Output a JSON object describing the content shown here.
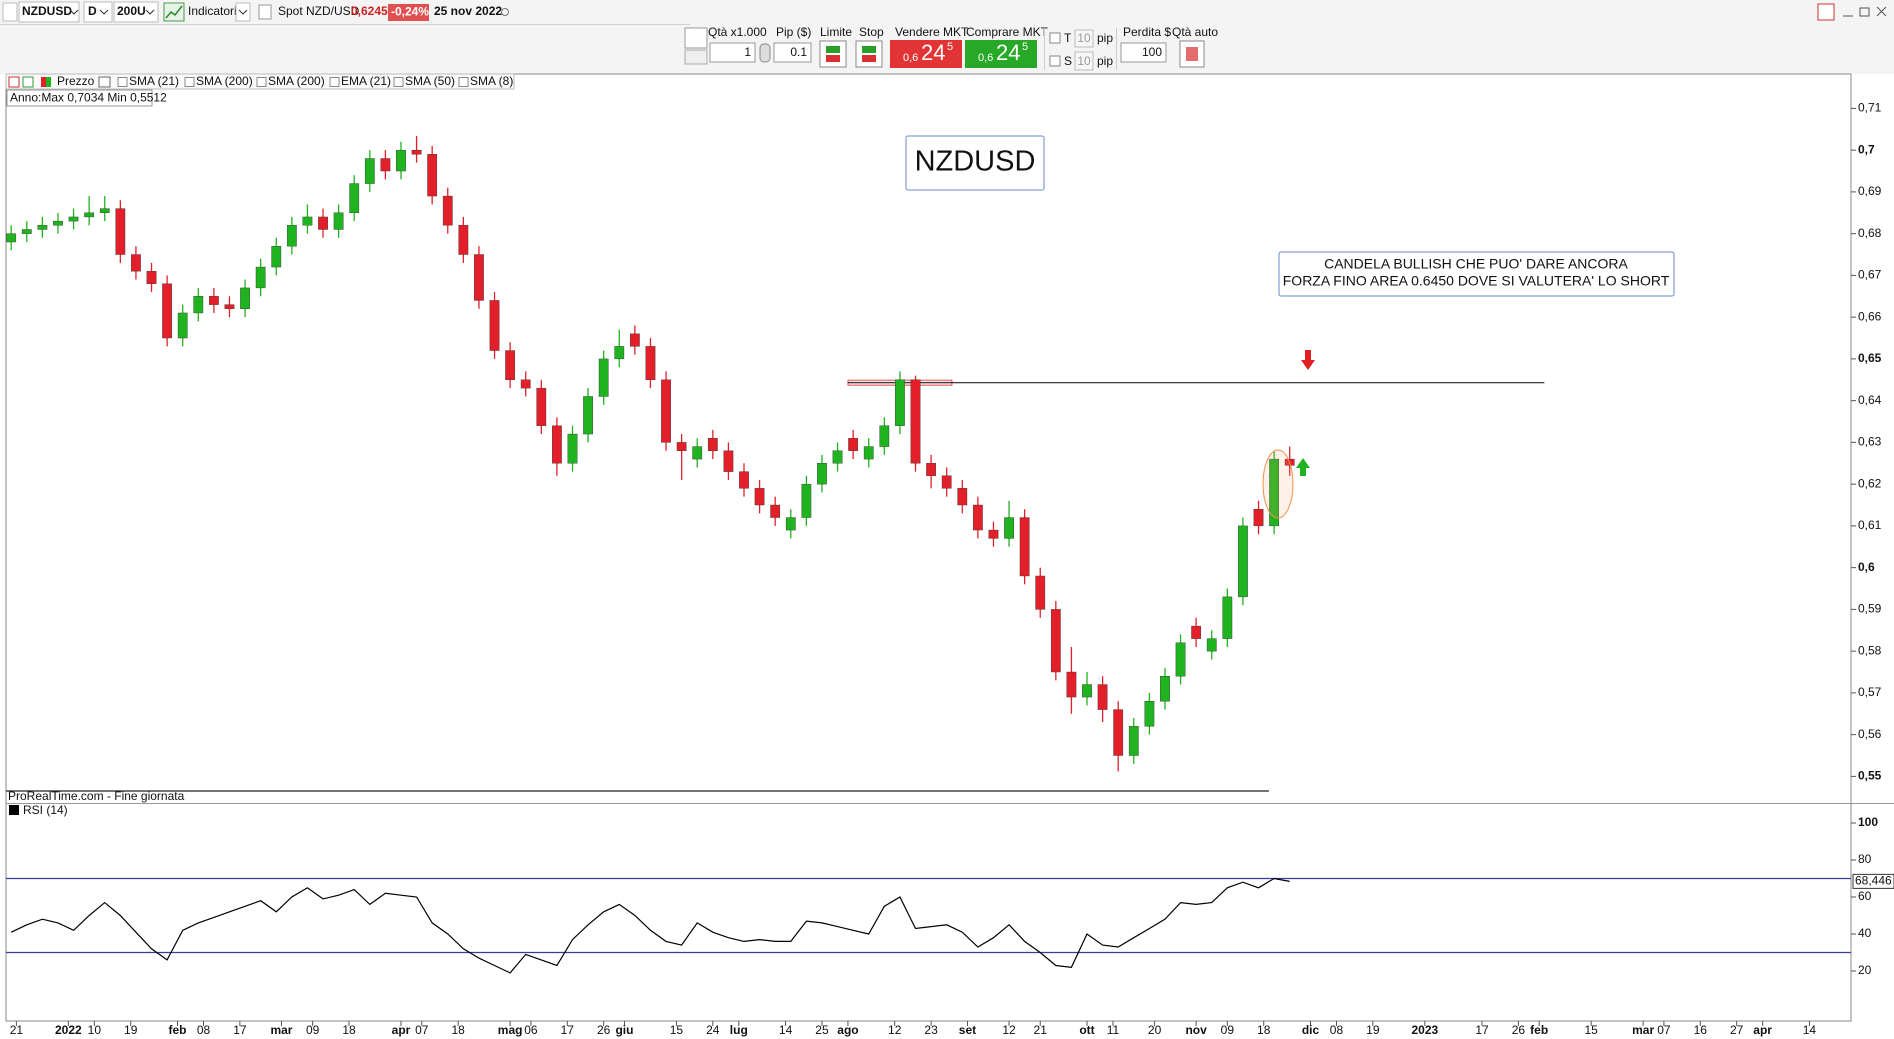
{
  "toolbar": {
    "symbol": "NZDUSD",
    "timeframe": "D",
    "bars": "200U",
    "indicators": "Indicatori",
    "instrument": "Spot NZD/USD",
    "price": "0,6245",
    "change": "-0,24%",
    "date": "25 nov 2022"
  },
  "order_panel": {
    "qty_label": "Qtà x1.000",
    "qty": "1",
    "pip_label": "Pip ($)",
    "pip": "0.1",
    "limit": "Limite",
    "stop": "Stop",
    "sell": {
      "label": "Vendere MKT",
      "price": [
        "0,6",
        "24",
        "5"
      ]
    },
    "buy": {
      "label": "Comprare MKT",
      "price": [
        "0,6",
        "24",
        "5"
      ]
    },
    "t": "T",
    "s": "S",
    "t_pips": "10",
    "s_pips": "10",
    "pip_units": [
      "pip",
      "pip"
    ],
    "loss_label": "Perdita $",
    "loss": "100",
    "auto": "Qtà auto"
  },
  "legend": {
    "items": [
      "Prezzo",
      "SMA (21)",
      "SMA (200)",
      "SMA (200)",
      "EMA (21)",
      "SMA (50)",
      "SMA (8)"
    ],
    "range_info": "Anno:Max 0,7034 Min 0,5512",
    "source": "ProRealTime.com - Fine giornata"
  },
  "chart_data": [
    {
      "type": "candlestick",
      "title": "NZDUSD",
      "x": [
        1,
        4,
        7,
        10,
        13,
        16,
        19,
        22,
        25,
        28,
        31,
        34,
        37,
        40,
        43,
        46,
        49,
        52,
        55,
        58,
        61,
        64,
        67,
        70,
        73,
        76,
        79,
        82,
        85,
        88,
        91,
        94,
        97,
        100,
        103,
        106,
        109,
        112,
        115,
        118,
        121,
        124,
        127,
        130,
        133,
        136,
        139,
        142,
        145,
        148,
        151,
        154,
        157,
        160,
        163,
        166,
        169,
        172,
        175,
        178,
        181,
        184,
        187,
        190,
        193,
        196,
        199,
        202,
        205,
        208,
        211,
        214,
        217,
        220,
        223,
        226,
        229,
        232,
        235,
        238,
        241,
        244,
        247
      ],
      "open": [
        0.678,
        0.68,
        0.681,
        0.682,
        0.683,
        0.684,
        0.685,
        0.686,
        0.675,
        0.671,
        0.668,
        0.655,
        0.661,
        0.665,
        0.663,
        0.662,
        0.667,
        0.672,
        0.677,
        0.682,
        0.684,
        0.681,
        0.685,
        0.692,
        0.698,
        0.695,
        0.7,
        0.699,
        0.689,
        0.682,
        0.675,
        0.664,
        0.652,
        0.645,
        0.643,
        0.634,
        0.625,
        0.632,
        0.641,
        0.65,
        0.656,
        0.653,
        0.645,
        0.63,
        0.626,
        0.631,
        0.628,
        0.623,
        0.619,
        0.615,
        0.609,
        0.612,
        0.62,
        0.625,
        0.631,
        0.626,
        0.629,
        0.634,
        0.645,
        0.625,
        0.622,
        0.619,
        0.615,
        0.609,
        0.607,
        0.612,
        0.598,
        0.59,
        0.575,
        0.569,
        0.572,
        0.566,
        0.555,
        0.562,
        0.568,
        0.574,
        0.586,
        0.58,
        0.583,
        0.593,
        0.614,
        0.61,
        0.626
      ],
      "high": [
        0.682,
        0.683,
        0.684,
        0.685,
        0.686,
        0.689,
        0.689,
        0.688,
        0.677,
        0.673,
        0.67,
        0.663,
        0.667,
        0.667,
        0.665,
        0.669,
        0.674,
        0.679,
        0.684,
        0.687,
        0.686,
        0.687,
        0.694,
        0.7,
        0.7,
        0.702,
        0.7034,
        0.701,
        0.691,
        0.684,
        0.677,
        0.666,
        0.654,
        0.647,
        0.645,
        0.636,
        0.634,
        0.643,
        0.652,
        0.657,
        0.658,
        0.655,
        0.647,
        0.632,
        0.631,
        0.633,
        0.63,
        0.625,
        0.621,
        0.617,
        0.614,
        0.622,
        0.627,
        0.63,
        0.633,
        0.631,
        0.636,
        0.647,
        0.646,
        0.627,
        0.624,
        0.621,
        0.617,
        0.611,
        0.616,
        0.614,
        0.6,
        0.592,
        0.581,
        0.575,
        0.574,
        0.568,
        0.564,
        0.57,
        0.576,
        0.584,
        0.588,
        0.585,
        0.595,
        0.612,
        0.616,
        0.628,
        0.629
      ],
      "low": [
        0.676,
        0.678,
        0.679,
        0.68,
        0.681,
        0.682,
        0.683,
        0.673,
        0.669,
        0.666,
        0.653,
        0.653,
        0.659,
        0.661,
        0.66,
        0.66,
        0.665,
        0.67,
        0.675,
        0.68,
        0.679,
        0.679,
        0.683,
        0.69,
        0.693,
        0.693,
        0.697,
        0.687,
        0.68,
        0.673,
        0.662,
        0.65,
        0.643,
        0.641,
        0.632,
        0.622,
        0.623,
        0.63,
        0.639,
        0.648,
        0.651,
        0.643,
        0.628,
        0.621,
        0.624,
        0.626,
        0.621,
        0.617,
        0.613,
        0.61,
        0.607,
        0.61,
        0.618,
        0.623,
        0.626,
        0.624,
        0.627,
        0.632,
        0.623,
        0.619,
        0.617,
        0.613,
        0.607,
        0.605,
        0.605,
        0.596,
        0.588,
        0.573,
        0.565,
        0.567,
        0.563,
        0.5512,
        0.553,
        0.56,
        0.566,
        0.572,
        0.581,
        0.578,
        0.581,
        0.591,
        0.608,
        0.608,
        0.622
      ],
      "close": [
        0.68,
        0.681,
        0.682,
        0.683,
        0.684,
        0.685,
        0.686,
        0.675,
        0.671,
        0.668,
        0.655,
        0.661,
        0.665,
        0.663,
        0.662,
        0.667,
        0.672,
        0.677,
        0.682,
        0.684,
        0.681,
        0.685,
        0.692,
        0.698,
        0.695,
        0.7,
        0.699,
        0.689,
        0.682,
        0.675,
        0.664,
        0.652,
        0.645,
        0.643,
        0.634,
        0.625,
        0.632,
        0.641,
        0.65,
        0.653,
        0.653,
        0.645,
        0.63,
        0.628,
        0.629,
        0.628,
        0.623,
        0.619,
        0.615,
        0.612,
        0.612,
        0.62,
        0.625,
        0.628,
        0.628,
        0.629,
        0.634,
        0.645,
        0.625,
        0.622,
        0.619,
        0.615,
        0.609,
        0.607,
        0.612,
        0.598,
        0.59,
        0.575,
        0.569,
        0.572,
        0.566,
        0.555,
        0.562,
        0.568,
        0.574,
        0.582,
        0.583,
        0.583,
        0.593,
        0.61,
        0.61,
        0.626,
        0.6245
      ],
      "colors": {
        "up": "#1fb41f",
        "down": "#e3202a"
      },
      "xlim": [
        0,
        355
      ],
      "ylim": [
        0.5465,
        0.718
      ],
      "yticks": [
        {
          "value": 0.71,
          "label": "0,71"
        },
        {
          "value": 0.7,
          "label": "0,7"
        },
        {
          "value": 0.69,
          "label": "0,69"
        },
        {
          "value": 0.68,
          "label": "0,68"
        },
        {
          "value": 0.67,
          "label": "0,67"
        },
        {
          "value": 0.66,
          "label": "0,66"
        },
        {
          "value": 0.65,
          "label": "0,65"
        },
        {
          "value": 0.64,
          "label": "0,64"
        },
        {
          "value": 0.63,
          "label": "0,63"
        },
        {
          "value": 0.62,
          "label": "0,62"
        },
        {
          "value": 0.61,
          "label": "0,61"
        },
        {
          "value": 0.6,
          "label": "0,6"
        },
        {
          "value": 0.59,
          "label": "0,59"
        },
        {
          "value": 0.58,
          "label": "0,58"
        },
        {
          "value": 0.57,
          "label": "0,57"
        },
        {
          "value": 0.56,
          "label": "0,56"
        },
        {
          "value": 0.55,
          "label": "0,55"
        }
      ],
      "hlines": [
        {
          "value": 0.6443,
          "from": 162,
          "to": 296
        },
        {
          "value": 0.5465,
          "from": 0,
          "to": 243
        }
      ],
      "zone": {
        "x": [
          162,
          182
        ],
        "y": [
          0.6437,
          0.6449
        ]
      },
      "annotation": [
        "CANDELA BULLISH CHE PUO' DARE ANCORA",
        "FORZA FINO AREA 0.6450 DOVE SI VALUTERA' LO SHORT"
      ]
    },
    {
      "type": "line",
      "title": "RSI (14)",
      "x": [
        1,
        4,
        7,
        10,
        13,
        16,
        19,
        22,
        25,
        28,
        31,
        34,
        37,
        40,
        43,
        46,
        49,
        52,
        55,
        58,
        61,
        64,
        67,
        70,
        73,
        76,
        79,
        82,
        85,
        88,
        91,
        94,
        97,
        100,
        103,
        106,
        109,
        112,
        115,
        118,
        121,
        124,
        127,
        130,
        133,
        136,
        139,
        142,
        145,
        148,
        151,
        154,
        157,
        160,
        163,
        166,
        169,
        172,
        175,
        178,
        181,
        184,
        187,
        190,
        193,
        196,
        199,
        202,
        205,
        208,
        211,
        214,
        217,
        220,
        223,
        226,
        229,
        232,
        235,
        238,
        241,
        244,
        247
      ],
      "values": [
        41,
        45,
        48,
        46,
        42,
        50,
        57,
        50,
        41,
        32,
        26,
        42,
        46,
        49,
        52,
        55,
        58,
        52,
        60,
        65,
        59,
        61,
        64,
        56,
        62,
        61,
        60,
        46,
        40,
        32,
        27,
        23,
        19,
        29,
        26,
        23,
        37,
        45,
        52,
        56,
        50,
        42,
        36,
        34,
        46,
        41,
        38,
        36,
        37,
        36,
        36,
        47,
        46,
        44,
        42,
        40,
        55,
        60,
        43,
        44,
        45,
        41,
        33,
        38,
        45,
        36,
        30,
        23,
        22,
        40,
        34,
        33,
        38,
        43,
        48,
        57,
        56,
        57,
        65,
        68,
        65,
        70,
        68.446
      ],
      "color": "#000000",
      "levels": [
        70,
        30
      ],
      "level_color": "#3b3b9c",
      "last_label": {
        "value": 68.446,
        "label": "68,446"
      },
      "xlim": [
        0,
        355
      ],
      "ylim": [
        -7,
        110.8
      ],
      "yticks": [
        20,
        40,
        60,
        80,
        100
      ],
      "xticks": [
        {
          "value": 2,
          "label": "21"
        },
        {
          "value": 12,
          "label": "2022"
        },
        {
          "value": 17,
          "label": "10"
        },
        {
          "value": 24,
          "label": "19"
        },
        {
          "value": 33,
          "label": "feb"
        },
        {
          "value": 38,
          "label": "08"
        },
        {
          "value": 45,
          "label": "17"
        },
        {
          "value": 53,
          "label": "mar"
        },
        {
          "value": 59,
          "label": "09"
        },
        {
          "value": 66,
          "label": "18"
        },
        {
          "value": 76,
          "label": "apr"
        },
        {
          "value": 80,
          "label": "07"
        },
        {
          "value": 87,
          "label": "18"
        },
        {
          "value": 97,
          "label": "mag"
        },
        {
          "value": 101,
          "label": "06"
        },
        {
          "value": 108,
          "label": "17"
        },
        {
          "value": 115,
          "label": "26"
        },
        {
          "value": 119,
          "label": "giu"
        },
        {
          "value": 129,
          "label": "15"
        },
        {
          "value": 136,
          "label": "24"
        },
        {
          "value": 141,
          "label": "lug"
        },
        {
          "value": 150,
          "label": "14"
        },
        {
          "value": 157,
          "label": "25"
        },
        {
          "value": 162,
          "label": "ago"
        },
        {
          "value": 171,
          "label": "12"
        },
        {
          "value": 178,
          "label": "23"
        },
        {
          "value": 185,
          "label": "set"
        },
        {
          "value": 193,
          "label": "12"
        },
        {
          "value": 199,
          "label": "21"
        },
        {
          "value": 208,
          "label": "ott"
        },
        {
          "value": 213,
          "label": "11"
        },
        {
          "value": 221,
          "label": "20"
        },
        {
          "value": 229,
          "label": "nov"
        },
        {
          "value": 235,
          "label": "09"
        },
        {
          "value": 242,
          "label": "18"
        },
        {
          "value": 251,
          "label": "dic"
        },
        {
          "value": 256,
          "label": "08"
        },
        {
          "value": 263,
          "label": "19"
        },
        {
          "value": 273,
          "label": "2023"
        },
        {
          "value": 284,
          "label": "17"
        },
        {
          "value": 291,
          "label": "26"
        },
        {
          "value": 295,
          "label": "feb"
        },
        {
          "value": 305,
          "label": "15"
        },
        {
          "value": 315,
          "label": "mar"
        },
        {
          "value": 319,
          "label": "07"
        },
        {
          "value": 326,
          "label": "16"
        },
        {
          "value": 333,
          "label": "27"
        },
        {
          "value": 338,
          "label": "apr"
        },
        {
          "value": 347,
          "label": "14"
        }
      ]
    }
  ]
}
